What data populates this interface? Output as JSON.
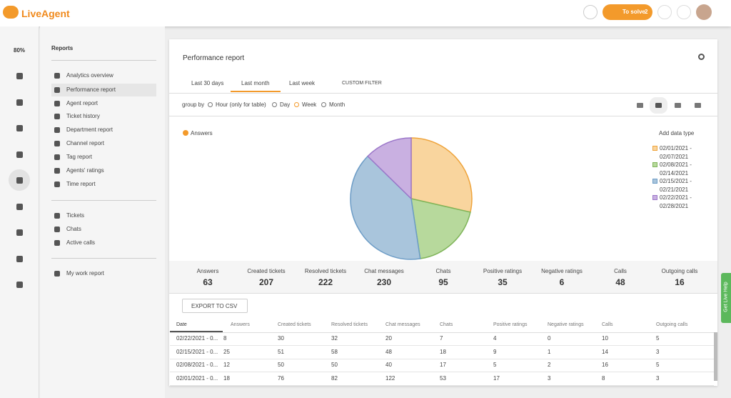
{
  "header": {
    "logo": "LiveAgent",
    "to_solve": "To solve",
    "to_solve_count": 2
  },
  "sidebar": {
    "zoom": "80%",
    "title": "Reports",
    "groups": [
      [
        "Analytics overview",
        "Performance report",
        "Agent report",
        "Ticket history",
        "Department report",
        "Channel report",
        "Tag report",
        "Agents' ratings",
        "Time report"
      ],
      [
        "Tickets",
        "Chats",
        "Active calls"
      ],
      [
        "My work report"
      ]
    ]
  },
  "report": {
    "title": "Performance report",
    "tabs": [
      "Last 30 days",
      "Last month",
      "Last week",
      "CUSTOM FILTER"
    ],
    "group_by_label": "group by",
    "group_by_options": [
      "Hour (only for table)",
      "Day",
      "Week",
      "Month"
    ],
    "add_data_type": "Add data type",
    "export": "EXPORT TO CSV"
  },
  "chart_data": {
    "type": "pie",
    "measure": "Answers",
    "categories": [
      "02/01/2021 - 02/07/2021",
      "02/08/2021 - 02/14/2021",
      "02/15/2021 - 02/21/2021",
      "02/22/2021 - 02/28/2021"
    ],
    "values": [
      18,
      12,
      25,
      8
    ],
    "colors": [
      "#f9d59e",
      "#b7d99c",
      "#a9c5dc",
      "#c9b0e1"
    ],
    "edge_colors": [
      "#efa43c",
      "#7fb459",
      "#6c9cc6",
      "#9b76c9"
    ]
  },
  "summary": {
    "labels": [
      "Answers",
      "Created tickets",
      "Resolved tickets",
      "Chat messages",
      "Chats",
      "Positive ratings",
      "Negative ratings",
      "Calls",
      "Outgoing calls"
    ],
    "values": [
      63,
      207,
      222,
      230,
      95,
      35,
      6,
      48,
      16
    ]
  },
  "table": {
    "headers": [
      "Date",
      "Answers",
      "Created tickets",
      "Resolved tickets",
      "Chat messages",
      "Chats",
      "Positive ratings",
      "Negative ratings",
      "Calls",
      "Outgoing calls"
    ],
    "rows": [
      [
        "02/22/2021 - 0...",
        8,
        30,
        32,
        20,
        7,
        4,
        0,
        10,
        5
      ],
      [
        "02/15/2021 - 0...",
        25,
        51,
        58,
        48,
        18,
        9,
        1,
        14,
        3
      ],
      [
        "02/08/2021 - 0...",
        12,
        50,
        50,
        40,
        17,
        5,
        2,
        16,
        5
      ],
      [
        "02/01/2021 - 0...",
        18,
        76,
        82,
        122,
        53,
        17,
        3,
        8,
        3
      ]
    ]
  },
  "help_tab": "Get Live Help"
}
